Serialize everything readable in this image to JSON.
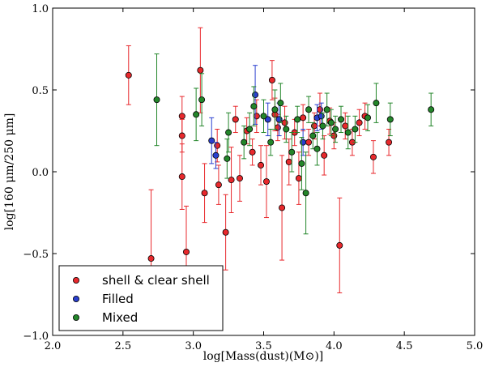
{
  "chart_data": {
    "type": "scatter",
    "title": "",
    "xlabel": "log[Mass(dust)(M⊙)]",
    "ylabel": "log[160 μm/250 μm]",
    "xlim": [
      2.0,
      5.0
    ],
    "ylim": [
      -1.0,
      1.0
    ],
    "x_ticks": [
      "2.0",
      "2.5",
      "3.0",
      "3.5",
      "4.0",
      "4.5",
      "5.0"
    ],
    "y_ticks": [
      "−1.0",
      "−0.5",
      "0.0",
      "0.5",
      "1.0"
    ],
    "grid": false,
    "legend_position": "bottom-left",
    "series": [
      {
        "name": "shell & clear shell",
        "color": "#e8282c",
        "points": [
          {
            "x": 2.54,
            "y": 0.59,
            "err": 0.18
          },
          {
            "x": 2.7,
            "y": -0.53,
            "err": 0.42
          },
          {
            "x": 2.92,
            "y": 0.34,
            "err": 0.12
          },
          {
            "x": 2.92,
            "y": 0.22,
            "err": 0.1
          },
          {
            "x": 2.92,
            "y": -0.03,
            "err": 0.2
          },
          {
            "x": 2.95,
            "y": -0.49,
            "err": 0.28
          },
          {
            "x": 3.05,
            "y": 0.62,
            "err": 0.26
          },
          {
            "x": 3.08,
            "y": -0.13,
            "err": 0.18
          },
          {
            "x": 3.17,
            "y": 0.16,
            "err": 0.1
          },
          {
            "x": 3.18,
            "y": -0.08,
            "err": 0.12
          },
          {
            "x": 3.23,
            "y": -0.37,
            "err": 0.23
          },
          {
            "x": 3.27,
            "y": -0.05,
            "err": 0.2
          },
          {
            "x": 3.3,
            "y": 0.32,
            "err": 0.08
          },
          {
            "x": 3.33,
            "y": -0.04,
            "err": 0.14
          },
          {
            "x": 3.38,
            "y": 0.25,
            "err": 0.08
          },
          {
            "x": 3.42,
            "y": 0.12,
            "err": 0.08
          },
          {
            "x": 3.45,
            "y": 0.34,
            "err": 0.1
          },
          {
            "x": 3.48,
            "y": 0.04,
            "err": 0.12
          },
          {
            "x": 3.52,
            "y": -0.06,
            "err": 0.22
          },
          {
            "x": 3.56,
            "y": 0.56,
            "err": 0.12
          },
          {
            "x": 3.58,
            "y": 0.35,
            "err": 0.1
          },
          {
            "x": 3.6,
            "y": 0.27,
            "err": 0.08
          },
          {
            "x": 3.63,
            "y": -0.22,
            "err": 0.32
          },
          {
            "x": 3.65,
            "y": 0.3,
            "err": 0.1
          },
          {
            "x": 3.68,
            "y": 0.06,
            "err": 0.14
          },
          {
            "x": 3.72,
            "y": 0.24,
            "err": 0.08
          },
          {
            "x": 3.75,
            "y": -0.04,
            "err": 0.16
          },
          {
            "x": 3.78,
            "y": 0.33,
            "err": 0.08
          },
          {
            "x": 3.82,
            "y": 0.18,
            "err": 0.08
          },
          {
            "x": 3.86,
            "y": 0.28,
            "err": 0.08
          },
          {
            "x": 3.9,
            "y": 0.38,
            "err": 0.1
          },
          {
            "x": 3.93,
            "y": 0.1,
            "err": 0.12
          },
          {
            "x": 3.97,
            "y": 0.31,
            "err": 0.08
          },
          {
            "x": 4.0,
            "y": 0.22,
            "err": 0.08
          },
          {
            "x": 4.04,
            "y": -0.45,
            "err": 0.29
          },
          {
            "x": 4.08,
            "y": 0.28,
            "err": 0.08
          },
          {
            "x": 4.13,
            "y": 0.18,
            "err": 0.08
          },
          {
            "x": 4.18,
            "y": 0.3,
            "err": 0.08
          },
          {
            "x": 4.22,
            "y": 0.34,
            "err": 0.08
          },
          {
            "x": 4.28,
            "y": 0.09,
            "err": 0.1
          },
          {
            "x": 4.39,
            "y": 0.18,
            "err": 0.08
          }
        ]
      },
      {
        "name": "Filled",
        "color": "#2a3fcf",
        "points": [
          {
            "x": 3.13,
            "y": 0.19,
            "err": 0.14
          },
          {
            "x": 3.16,
            "y": 0.1,
            "err": 0.08
          },
          {
            "x": 3.44,
            "y": 0.47,
            "err": 0.18
          },
          {
            "x": 3.53,
            "y": 0.32,
            "err": 0.1
          },
          {
            "x": 3.61,
            "y": 0.32,
            "err": 0.1
          },
          {
            "x": 3.78,
            "y": 0.18,
            "err": 0.08
          },
          {
            "x": 3.88,
            "y": 0.33,
            "err": 0.08
          },
          {
            "x": 3.91,
            "y": 0.34,
            "err": 0.08
          }
        ]
      },
      {
        "name": "Mixed",
        "color": "#23862a",
        "points": [
          {
            "x": 2.74,
            "y": 0.44,
            "err": 0.28
          },
          {
            "x": 3.02,
            "y": 0.35,
            "err": 0.16
          },
          {
            "x": 3.06,
            "y": 0.44,
            "err": 0.16
          },
          {
            "x": 3.25,
            "y": 0.24,
            "err": 0.12
          },
          {
            "x": 3.24,
            "y": 0.08,
            "err": 0.12
          },
          {
            "x": 3.36,
            "y": 0.18,
            "err": 0.1
          },
          {
            "x": 3.4,
            "y": 0.26,
            "err": 0.1
          },
          {
            "x": 3.43,
            "y": 0.4,
            "err": 0.12
          },
          {
            "x": 3.5,
            "y": 0.34,
            "err": 0.1
          },
          {
            "x": 3.55,
            "y": 0.18,
            "err": 0.08
          },
          {
            "x": 3.58,
            "y": 0.38,
            "err": 0.12
          },
          {
            "x": 3.62,
            "y": 0.42,
            "err": 0.12
          },
          {
            "x": 3.66,
            "y": 0.26,
            "err": 0.08
          },
          {
            "x": 3.7,
            "y": 0.12,
            "err": 0.12
          },
          {
            "x": 3.74,
            "y": 0.32,
            "err": 0.08
          },
          {
            "x": 3.77,
            "y": 0.05,
            "err": 0.16
          },
          {
            "x": 3.8,
            "y": -0.13,
            "err": 0.25
          },
          {
            "x": 3.82,
            "y": 0.38,
            "err": 0.08
          },
          {
            "x": 3.85,
            "y": 0.22,
            "err": 0.08
          },
          {
            "x": 3.88,
            "y": 0.14,
            "err": 0.1
          },
          {
            "x": 3.92,
            "y": 0.28,
            "err": 0.08
          },
          {
            "x": 3.95,
            "y": 0.38,
            "err": 0.1
          },
          {
            "x": 3.98,
            "y": 0.3,
            "err": 0.08
          },
          {
            "x": 4.01,
            "y": 0.26,
            "err": 0.08
          },
          {
            "x": 4.05,
            "y": 0.32,
            "err": 0.08
          },
          {
            "x": 4.1,
            "y": 0.24,
            "err": 0.1
          },
          {
            "x": 4.15,
            "y": 0.26,
            "err": 0.08
          },
          {
            "x": 4.24,
            "y": 0.33,
            "err": 0.08
          },
          {
            "x": 4.3,
            "y": 0.42,
            "err": 0.12
          },
          {
            "x": 4.4,
            "y": 0.32,
            "err": 0.1
          },
          {
            "x": 4.69,
            "y": 0.38,
            "err": 0.1
          }
        ]
      }
    ]
  }
}
